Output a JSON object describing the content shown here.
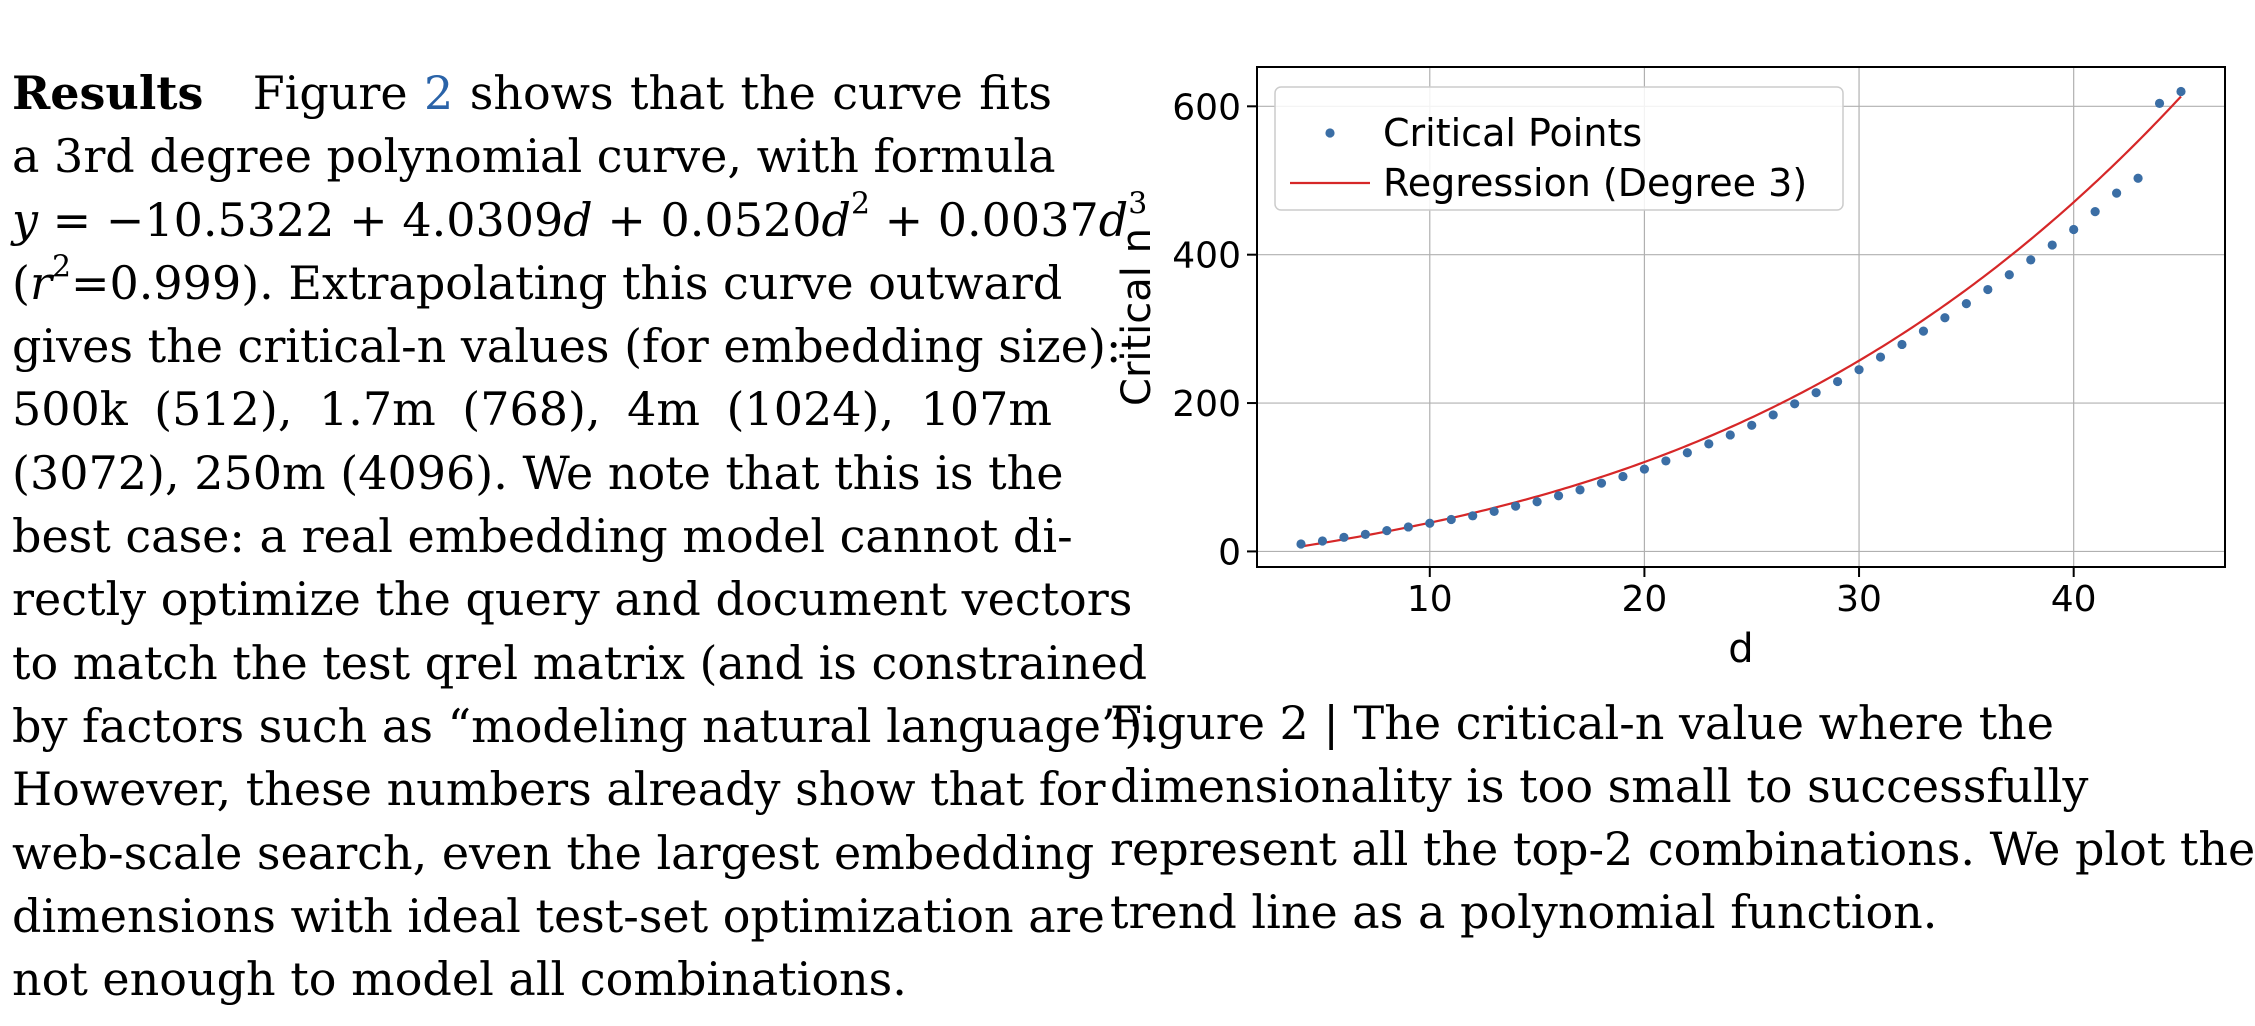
{
  "paragraph": {
    "heading": "Results",
    "lines": [
      [
        "Figure ",
        "2",
        " shows that the curve fits"
      ],
      "a 3rd degree polynomial curve, with formula",
      "(",
      "). Extrapolating this curve outward",
      "gives the critical-n values (for embedding size):",
      "500k (512), 1.7m (768), 4m (1024), 107m",
      "(3072), 250m (4096). We note that this is the",
      "best case: a real embedding model cannot di-",
      "rectly optimize the query and document vectors",
      "to match the test qrel matrix (and is constrained",
      "by factors such as “modeling natural language”).",
      "However, these numbers already show that for",
      "web-scale search, even the largest embedding",
      "dimensions with ideal test-set optimization are",
      "not enough to model all combinations."
    ],
    "formula": {
      "y": "y",
      "rhs_1": " = −10.5322 + 4.0309",
      "d1": "d",
      "rhs_2": " + 0.0520",
      "d2": "d",
      "exp2": "2",
      "rhs_3": " + 0.0037",
      "d3": "d",
      "exp3": "3"
    },
    "r2": {
      "r": "r",
      "exp": "2",
      "value": "=0.999"
    }
  },
  "caption": {
    "lines": [
      "Figure 2 | The critical-n value where the",
      "dimensionality is too small to successfully",
      "represent all the top-2 combinations. We plot the",
      "trend line as a polynomial function."
    ]
  },
  "chart_data": {
    "type": "scatter",
    "xlabel": "d",
    "ylabel": "Critical n",
    "xlim": [
      1.95,
      47.05
    ],
    "ylim": [
      -21,
      653
    ],
    "xticks": [
      10,
      20,
      30,
      40
    ],
    "yticks": [
      0,
      200,
      400,
      600
    ],
    "grid": true,
    "legend_position": "top-left",
    "series": [
      {
        "name": "Critical Points",
        "kind": "scatter",
        "color": "#3b6ea5",
        "x": [
          4,
          5,
          6,
          7,
          8,
          9,
          10,
          11,
          12,
          13,
          14,
          15,
          16,
          17,
          18,
          19,
          20,
          21,
          22,
          23,
          24,
          25,
          26,
          27,
          28,
          29,
          30,
          31,
          32,
          33,
          34,
          35,
          36,
          37,
          38,
          39,
          40,
          41,
          42,
          43,
          44,
          45
        ],
        "y": [
          10,
          14,
          19,
          23,
          28,
          33,
          38,
          43,
          48,
          54,
          61,
          67,
          75,
          83,
          92,
          101,
          111,
          122,
          133,
          145,
          157,
          170,
          184,
          199,
          214,
          229,
          245,
          262,
          279,
          297,
          315,
          334,
          353,
          373,
          393,
          413,
          434,
          458,
          483,
          503,
          604,
          620
        ]
      },
      {
        "name": "Regression (Degree 3)",
        "kind": "line",
        "color": "#d62728",
        "coefficients": [
          -10.5322,
          4.0309,
          0.052,
          0.0037
        ],
        "x_range": [
          4,
          45
        ]
      }
    ]
  },
  "colors": {
    "link": "#2a63a8",
    "scatter": "#3b6ea5",
    "regression": "#d62728",
    "grid": "#b0b0b0"
  }
}
